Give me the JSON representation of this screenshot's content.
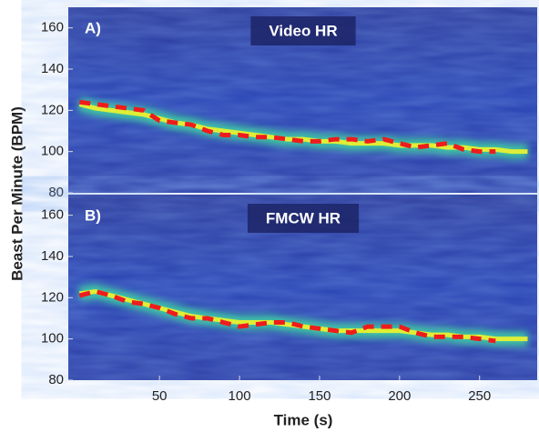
{
  "chart_data": [
    {
      "type": "line",
      "label": "A)",
      "title": "Video HR",
      "ylabel": "Beast Per Minute (BPM)",
      "xlim": [
        -7,
        286
      ],
      "ylim": [
        80,
        170
      ],
      "yticks": [
        80,
        100,
        120,
        140,
        160
      ],
      "x": [
        0,
        10,
        20,
        30,
        40,
        50,
        60,
        70,
        80,
        90,
        100,
        110,
        120,
        130,
        140,
        150,
        160,
        170,
        180,
        190,
        200,
        210,
        220,
        230,
        240,
        250,
        260,
        270,
        280
      ],
      "series": [
        {
          "color": "#e8f030",
          "values": [
            123,
            121,
            120,
            119,
            118,
            116,
            114,
            113,
            111,
            110,
            109,
            108,
            107,
            106,
            106,
            105,
            105,
            104,
            104,
            104,
            103,
            103,
            103,
            102,
            102,
            101,
            101,
            100,
            100
          ]
        },
        {
          "color": "#ee1c1c",
          "values": [
            124,
            123,
            122,
            121,
            120,
            115,
            114,
            113,
            110,
            108,
            108,
            107,
            107,
            106,
            105,
            105,
            106,
            106,
            105,
            106,
            104,
            102,
            103,
            104,
            101,
            100,
            100,
            null,
            null
          ]
        }
      ]
    },
    {
      "type": "line",
      "label": "B)",
      "title": "FMCW HR",
      "xlabel": "Time (s)",
      "xlim": [
        -7,
        286
      ],
      "ylim": [
        80,
        170
      ],
      "yticks": [
        80,
        100,
        120,
        140,
        160
      ],
      "xticks": [
        50,
        100,
        150,
        200,
        250
      ],
      "x": [
        0,
        10,
        20,
        30,
        40,
        50,
        60,
        70,
        80,
        90,
        100,
        110,
        120,
        130,
        140,
        150,
        160,
        170,
        180,
        190,
        200,
        210,
        220,
        230,
        240,
        250,
        260,
        270,
        280
      ],
      "series": [
        {
          "color": "#e8f030",
          "values": [
            122,
            123,
            121,
            119,
            117,
            115,
            113,
            111,
            110,
            109,
            108,
            108,
            108,
            107,
            106,
            105,
            104,
            104,
            104,
            104,
            104,
            103,
            102,
            102,
            101,
            101,
            100,
            100,
            100
          ]
        },
        {
          "color": "#ee1c1c",
          "values": [
            121,
            123,
            121,
            118,
            117,
            115,
            112,
            110,
            110,
            108,
            106,
            107,
            108,
            108,
            106,
            105,
            104,
            103,
            106,
            106,
            106,
            103,
            101,
            101,
            101,
            100,
            99,
            null,
            null
          ]
        }
      ]
    }
  ]
}
